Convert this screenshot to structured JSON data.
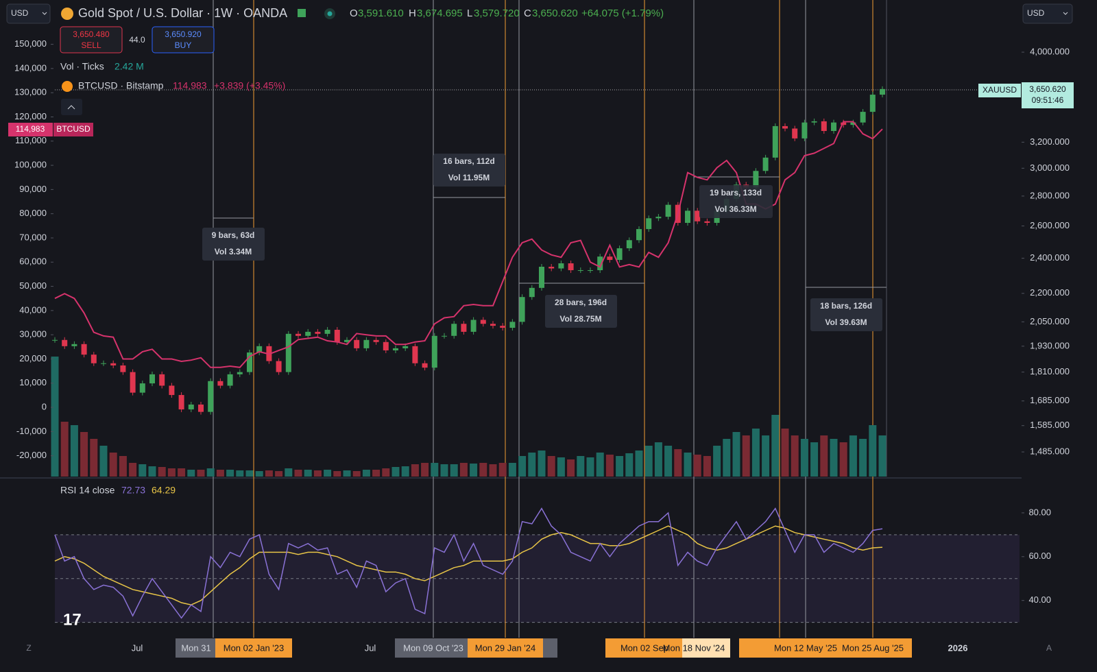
{
  "header": {
    "currency_left": "USD",
    "symbol_title": "Gold Spot / U.S. Dollar · 1W · OANDA",
    "ohlc": {
      "o_label": "O",
      "o": "3,591.610",
      "h_label": "H",
      "h": "3,674.695",
      "l_label": "L",
      "l": "3,579.720",
      "c_label": "C",
      "c": "3,650.620",
      "change": "+64.075 (+1.79%)"
    },
    "currency_right": "USD"
  },
  "order_panel": {
    "sell_price": "3,650.480",
    "sell": "SELL",
    "spread": "44.0",
    "buy_price": "3,650.920",
    "buy": "BUY"
  },
  "legend": {
    "volume": "Vol · Ticks",
    "volume_value": "2.42 M",
    "compare": "BTCUSD · Bitstamp",
    "compare_price": "114,983",
    "compare_change": "+3,839 (+3.45%)",
    "rsi": "RSI 14 close",
    "rsi_value": "72.73",
    "rsi_ma_value": "64.29"
  },
  "price_labels": {
    "btc_price": "114,983",
    "btc_symbol": "BTCUSD",
    "gold_symbol": "XAUUSD",
    "gold_price": "3,650.620",
    "countdown": "09:51:46"
  },
  "gold": {
    "type": "candlestick",
    "log": true,
    "up_color": "#3fa35a",
    "down_color": "#e0364f",
    "ylim": [
      1397,
      4552
    ],
    "yticks": [
      {
        "value": 4000,
        "label": "4,000.000"
      },
      {
        "value": 3200,
        "label": "3,200.000"
      },
      {
        "value": 3000,
        "label": "3,000.000"
      },
      {
        "value": 2800,
        "label": "2,800.000"
      },
      {
        "value": 2600,
        "label": "2,600.000"
      },
      {
        "value": 2400,
        "label": "2,400.000"
      },
      {
        "value": 2200,
        "label": "2,200.000"
      },
      {
        "value": 2050,
        "label": "2,050.000"
      },
      {
        "value": 1930,
        "label": "1,930.000"
      },
      {
        "value": 1810,
        "label": "1,810.000"
      },
      {
        "value": 1685,
        "label": "1,685.000"
      },
      {
        "value": 1585,
        "label": "1,585.000"
      },
      {
        "value": 1485,
        "label": "1,485.000"
      }
    ],
    "close": [
      1960,
      1930,
      1940,
      1890,
      1850,
      1850,
      1840,
      1810,
      1720,
      1760,
      1800,
      1750,
      1710,
      1650,
      1670,
      1640,
      1770,
      1750,
      1800,
      1810,
      1900,
      1930,
      1860,
      1810,
      1990,
      1980,
      2000,
      1990,
      2010,
      1950,
      1960,
      1920,
      1960,
      1950,
      1910,
      1920,
      1930,
      1850,
      1830,
      1980,
      1980,
      2040,
      2000,
      2060,
      2040,
      2030,
      2020,
      2050,
      2180,
      2230,
      2350,
      2340,
      2370,
      2330,
      2330,
      2330,
      2410,
      2390,
      2460,
      2510,
      2580,
      2650,
      2660,
      2740,
      2620,
      2700,
      2630,
      2620,
      2700,
      2780,
      2880,
      2860,
      2980,
      3080,
      3330,
      3310,
      3230,
      3360,
      3370,
      3290,
      3360,
      3340,
      3360,
      3450,
      3600,
      3650.62
    ]
  },
  "btc": {
    "type": "line",
    "color": "#d6336c",
    "ylim": [
      -28600,
      168300
    ],
    "yticks": [
      {
        "value": 150000,
        "label": "150,000"
      },
      {
        "value": 140000,
        "label": "140,000"
      },
      {
        "value": 130000,
        "label": "130,000"
      },
      {
        "value": 120000,
        "label": "120,000"
      },
      {
        "value": 110000,
        "label": "110,000"
      },
      {
        "value": 100000,
        "label": "100,000"
      },
      {
        "value": 90000,
        "label": "90,000"
      },
      {
        "value": 80000,
        "label": "80,000"
      },
      {
        "value": 70000,
        "label": "70,000"
      },
      {
        "value": 60000,
        "label": "60,000"
      },
      {
        "value": 50000,
        "label": "50,000"
      },
      {
        "value": 40000,
        "label": "40,000"
      },
      {
        "value": 30000,
        "label": "30,000"
      },
      {
        "value": 20000,
        "label": "20,000"
      },
      {
        "value": 10000,
        "label": "10,000"
      },
      0,
      {
        "value": -10000,
        "label": "-10,000"
      },
      {
        "value": -20000,
        "label": "-20,000"
      }
    ],
    "values": [
      45000,
      47000,
      45000,
      39000,
      31000,
      29500,
      29000,
      20000,
      20000,
      23000,
      24000,
      20000,
      20000,
      19000,
      19500,
      20500,
      16500,
      16500,
      17000,
      16500,
      21000,
      23000,
      22000,
      23500,
      25000,
      28000,
      28500,
      29000,
      27500,
      27000,
      26000,
      30500,
      30000,
      29500,
      29500,
      26000,
      26000,
      27000,
      27500,
      34500,
      37000,
      37500,
      42000,
      42500,
      42000,
      42000,
      52000,
      62000,
      68000,
      69500,
      65000,
      63000,
      62000,
      68000,
      69000,
      60000,
      58000,
      67000,
      58000,
      59000,
      58000,
      64000,
      62000,
      68000,
      80000,
      97000,
      95000,
      94000,
      99000,
      102000,
      97000,
      84000,
      84000,
      82000,
      84000,
      94000,
      97000,
      104000,
      105000,
      107000,
      109000,
      118000,
      118000,
      113000,
      111000,
      114983
    ]
  },
  "volume": {
    "type": "bar",
    "up_color": "#1f6b63",
    "down_color": "#7a2a33",
    "values": [
      1.75,
      0.8,
      0.75,
      0.65,
      0.55,
      0.45,
      0.35,
      0.3,
      0.2,
      0.18,
      0.15,
      0.14,
      0.12,
      0.12,
      0.1,
      0.1,
      0.12,
      0.1,
      0.1,
      0.09,
      0.09,
      0.08,
      0.09,
      0.08,
      0.12,
      0.1,
      0.1,
      0.09,
      0.1,
      0.08,
      0.09,
      0.08,
      0.1,
      0.1,
      0.12,
      0.14,
      0.15,
      0.18,
      0.2,
      0.2,
      0.18,
      0.18,
      0.2,
      0.19,
      0.2,
      0.18,
      0.2,
      0.2,
      0.3,
      0.35,
      0.38,
      0.3,
      0.28,
      0.25,
      0.3,
      0.28,
      0.35,
      0.32,
      0.3,
      0.34,
      0.38,
      0.45,
      0.5,
      0.45,
      0.4,
      0.35,
      0.32,
      0.3,
      0.45,
      0.55,
      0.65,
      0.6,
      0.7,
      0.6,
      0.9,
      0.7,
      0.6,
      0.55,
      0.5,
      0.6,
      0.55,
      0.5,
      0.6,
      0.55,
      0.75,
      0.6
    ]
  },
  "rsi": {
    "type": "line",
    "color": "#8a72d6",
    "ma_color": "#e8c547",
    "ylim": [
      23,
      95
    ],
    "yticks": [
      {
        "value": 80,
        "label": "80.00"
      },
      {
        "value": 60,
        "label": "60.00"
      },
      {
        "value": 40,
        "label": "40.00"
      }
    ],
    "bands": [
      70,
      50,
      30
    ],
    "values": [
      70,
      58,
      60,
      50,
      45,
      47,
      46,
      42,
      33,
      42,
      50,
      44,
      38,
      32,
      38,
      35,
      60,
      55,
      62,
      60,
      68,
      70,
      52,
      45,
      66,
      64,
      66,
      63,
      64,
      52,
      54,
      46,
      58,
      56,
      44,
      48,
      50,
      36,
      34,
      64,
      62,
      70,
      58,
      66,
      56,
      54,
      52,
      58,
      76,
      75,
      82,
      74,
      70,
      62,
      60,
      58,
      66,
      60,
      66,
      70,
      74,
      76,
      76,
      80,
      56,
      62,
      58,
      56,
      64,
      70,
      76,
      68,
      72,
      76,
      82,
      72,
      62,
      70,
      70,
      62,
      66,
      64,
      62,
      66,
      72,
      72.73
    ],
    "ma": [
      58,
      60,
      59,
      57,
      54,
      51,
      49,
      47,
      45,
      44,
      43,
      42,
      41,
      39,
      38,
      40,
      44,
      48,
      52,
      55,
      59,
      62,
      62,
      62,
      62,
      61,
      62,
      62,
      61,
      60,
      58,
      56,
      55,
      54,
      53,
      53,
      52,
      50,
      49,
      51,
      53,
      55,
      56,
      58,
      58,
      58,
      58,
      59,
      62,
      64,
      68,
      70,
      71,
      70,
      68,
      66,
      66,
      65,
      65,
      66,
      68,
      70,
      72,
      74,
      72,
      70,
      66,
      64,
      63,
      64,
      66,
      68,
      70,
      72,
      74,
      73,
      71,
      70,
      69,
      68,
      67,
      66,
      64,
      63,
      64,
      64.29
    ]
  },
  "measurements": [
    {
      "bars": "9 bars, 63d",
      "vol": "Vol 3.34M"
    },
    {
      "bars": "16 bars, 112d",
      "vol": "Vol 11.95M"
    },
    {
      "bars": "28 bars, 196d",
      "vol": "Vol 28.75M"
    },
    {
      "bars": "19 bars, 133d",
      "vol": "Vol 36.33M"
    },
    {
      "bars": "18 bars, 126d",
      "vol": "Vol 39.63M"
    }
  ],
  "time_axis": [
    "Jul",
    "Mon 31",
    "Mon 02 Jan '23",
    "Jul",
    "Mon 09 Oct '23",
    "Mon 29 Jan '24",
    "Mon 02 Sep",
    "Mon 18 Nov '24",
    "Mon 12 May '25",
    "Mon 25 Aug '25",
    "2026"
  ]
}
